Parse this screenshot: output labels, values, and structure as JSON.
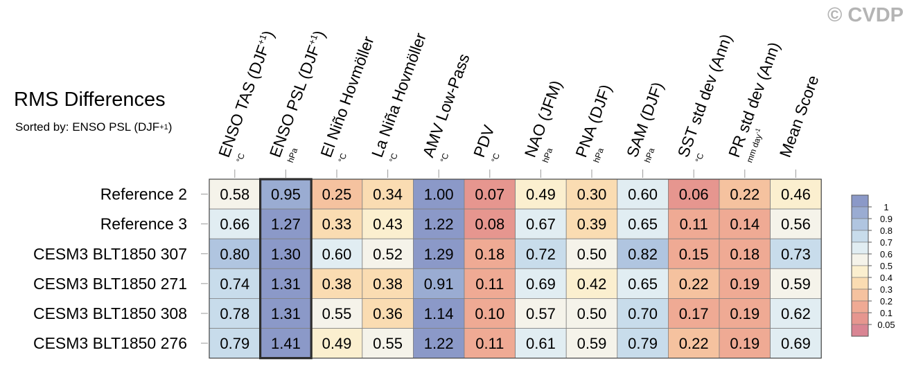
{
  "title": "RMS Differences",
  "subtitle": {
    "prefix": "Sorted by: ENSO PSL (DJF",
    "superscript": "+1",
    "suffix": ")"
  },
  "watermark": "© CVDP",
  "colors": {
    "scale": [
      "#d98593",
      "#e6968f",
      "#efaa94",
      "#f5c29f",
      "#fadcb2",
      "#fbefcf",
      "#f5f3ea",
      "#e1edf2",
      "#c8dceb",
      "#b0c5e0",
      "#9aacd2",
      "#8b99c8"
    ],
    "highlight_border": "#2e2e2e",
    "grid_line": "#808080"
  },
  "chart_data": {
    "type": "heatmap",
    "title": "RMS Differences",
    "sort_key": "ENSO PSL (DJF+1)",
    "highlight_column": 1,
    "columns": [
      {
        "label": "ENSO TAS (DJF",
        "sup": "+1",
        "label_end": ")",
        "unit": "°C"
      },
      {
        "label": "ENSO PSL (DJF",
        "sup": "+1",
        "label_end": ")",
        "unit": "hPa"
      },
      {
        "label": "El Niño Hovmöller",
        "unit": "°C"
      },
      {
        "label": "La Niña Hovmöller",
        "unit": "°C"
      },
      {
        "label": "AMV Low-Pass",
        "unit": "°C"
      },
      {
        "label": "PDV",
        "unit": "°C"
      },
      {
        "label": "NAO (JFM)",
        "unit": "hPa"
      },
      {
        "label": "PNA (DJF)",
        "unit": "hPa"
      },
      {
        "label": "SAM (DJF)",
        "unit": "hPa"
      },
      {
        "label": "SST std dev (Ann)",
        "unit": "°C"
      },
      {
        "label": "PR std dev (Ann)",
        "unit": "mm day",
        "unit_sup": "-1"
      },
      {
        "label": "Mean Score",
        "unit": ""
      }
    ],
    "rows": [
      "Reference 2",
      "Reference 3",
      "CESM3 BLT1850 307",
      "CESM3 BLT1850 271",
      "CESM3 BLT1850 308",
      "CESM3 BLT1850 276"
    ],
    "values": [
      [
        0.58,
        0.95,
        0.25,
        0.34,
        1.0,
        0.07,
        0.49,
        0.3,
        0.6,
        0.06,
        0.22,
        0.46
      ],
      [
        0.66,
        1.27,
        0.33,
        0.43,
        1.22,
        0.08,
        0.67,
        0.39,
        0.65,
        0.11,
        0.14,
        0.56
      ],
      [
        0.8,
        1.3,
        0.6,
        0.52,
        1.29,
        0.18,
        0.72,
        0.5,
        0.82,
        0.15,
        0.18,
        0.73
      ],
      [
        0.74,
        1.31,
        0.38,
        0.38,
        0.91,
        0.11,
        0.69,
        0.42,
        0.65,
        0.22,
        0.19,
        0.59
      ],
      [
        0.78,
        1.31,
        0.55,
        0.36,
        1.14,
        0.1,
        0.57,
        0.5,
        0.7,
        0.17,
        0.19,
        0.62
      ],
      [
        0.79,
        1.41,
        0.49,
        0.55,
        1.22,
        0.11,
        0.61,
        0.59,
        0.79,
        0.22,
        0.19,
        0.69
      ]
    ],
    "colorbar": {
      "levels": [
        0.05,
        0.1,
        0.2,
        0.3,
        0.4,
        0.5,
        0.6,
        0.7,
        0.8,
        0.9,
        1
      ],
      "labels": [
        "1",
        "0.9",
        "0.8",
        "0.7",
        "0.6",
        "0.5",
        "0.4",
        "0.3",
        "0.2",
        "0.1",
        "0.05"
      ]
    }
  }
}
